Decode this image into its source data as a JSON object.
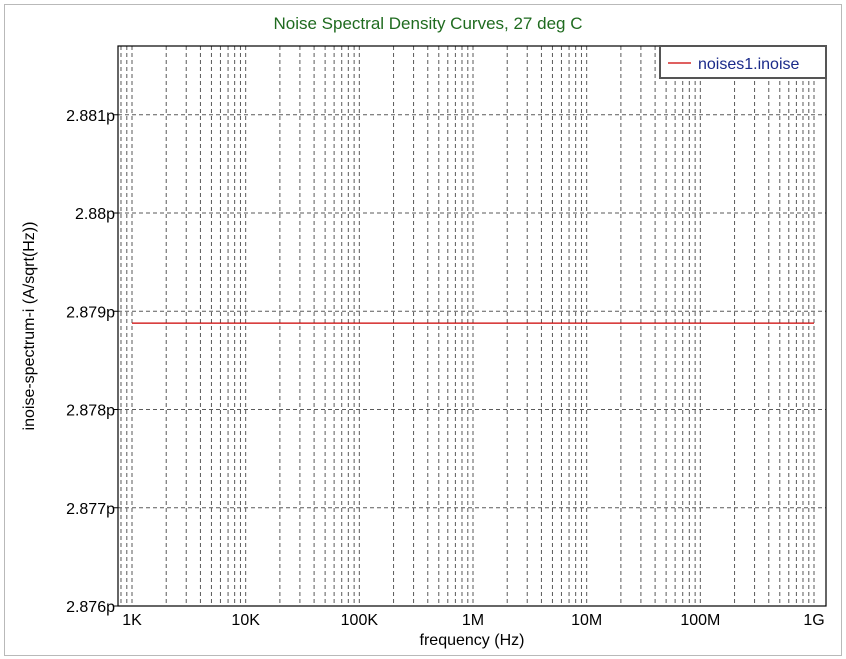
{
  "chart_data": {
    "type": "line",
    "title": "Noise Spectral Density Curves, 27 deg C",
    "xlabel": "frequency (Hz)",
    "ylabel": "inoise-spectrum-i (A/sqrt(Hz))",
    "xscale": "log",
    "xlim": [
      1000,
      1000000000
    ],
    "ylim": [
      2.876,
      2.8817
    ],
    "y_unit": "pA/sqrt(Hz)",
    "x_ticks": [
      {
        "value": 1000,
        "label": "1K"
      },
      {
        "value": 10000,
        "label": "10K"
      },
      {
        "value": 100000,
        "label": "100K"
      },
      {
        "value": 1000000,
        "label": "1M"
      },
      {
        "value": 10000000,
        "label": "10M"
      },
      {
        "value": 100000000,
        "label": "100M"
      },
      {
        "value": 1000000000,
        "label": "1G"
      }
    ],
    "y_ticks": [
      {
        "value": 2.876,
        "label": "2.876p"
      },
      {
        "value": 2.877,
        "label": "2.877p"
      },
      {
        "value": 2.878,
        "label": "2.878p"
      },
      {
        "value": 2.879,
        "label": "2.879p"
      },
      {
        "value": 2.88,
        "label": "2.88p"
      },
      {
        "value": 2.881,
        "label": "2.881p"
      }
    ],
    "grid": true,
    "legend_position": "top-right",
    "series": [
      {
        "name": "noises1.inoise",
        "color": "#cc0000",
        "x": [
          1000,
          10000,
          100000,
          1000000,
          10000000,
          100000000,
          1000000000
        ],
        "y": [
          2.87888,
          2.87888,
          2.87888,
          2.87888,
          2.87888,
          2.87888,
          2.87888
        ]
      }
    ]
  }
}
